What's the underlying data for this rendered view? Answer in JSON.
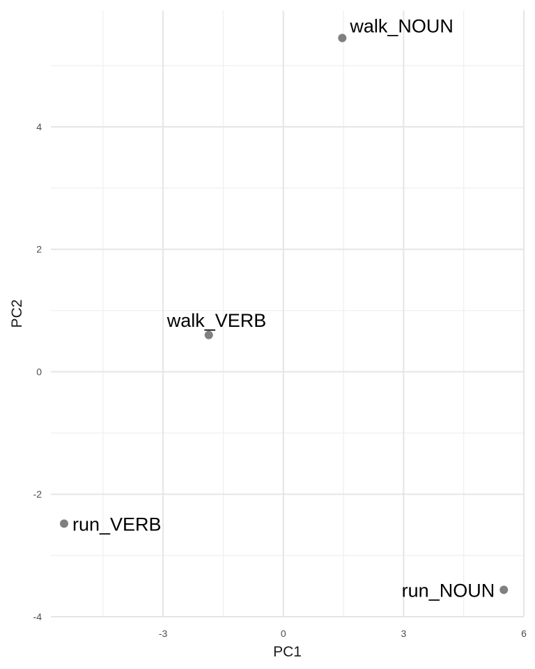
{
  "chart_data": {
    "type": "scatter",
    "title": "",
    "xlabel": "PC1",
    "ylabel": "PC2",
    "xlim": [
      -5.8,
      6.0
    ],
    "ylim": [
      -4.0,
      5.9
    ],
    "x_ticks": [
      -3,
      0,
      3,
      6
    ],
    "y_ticks": [
      -4,
      -2,
      0,
      2,
      4
    ],
    "x_tick_labels": [
      "-3",
      "0",
      "3",
      "6"
    ],
    "y_tick_labels": [
      "-4",
      "-2",
      "0",
      "2",
      "4"
    ],
    "grid": true,
    "legend": "none",
    "point_color": "#808080",
    "points": [
      {
        "label": "walk_NOUN",
        "x": 1.47,
        "y": 5.45
      },
      {
        "label": "walk_VERB",
        "x": -1.86,
        "y": 0.6
      },
      {
        "label": "run_VERB",
        "x": -5.47,
        "y": -2.48
      },
      {
        "label": "run_NOUN",
        "x": 5.5,
        "y": -3.56
      }
    ]
  }
}
